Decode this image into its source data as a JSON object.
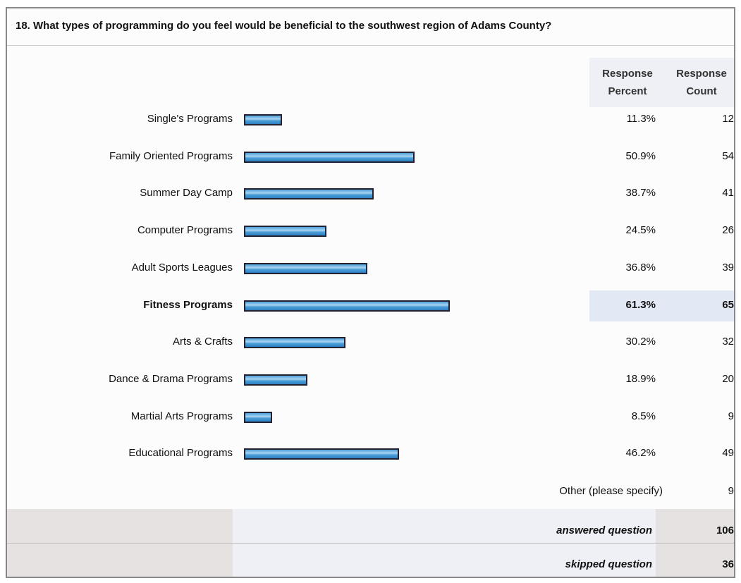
{
  "chart_data": {
    "type": "bar",
    "title": "18. What types of programming do you feel would be beneficial to the southwest region of Adams County?",
    "column_headers": [
      "Response Percent",
      "Response Count"
    ],
    "categories": [
      "Single's Programs",
      "Family Oriented Programs",
      "Summer Day Camp",
      "Computer Programs",
      "Adult Sports Leagues",
      "Fitness Programs",
      "Arts & Crafts",
      "Dance & Drama Programs",
      "Martial Arts Programs",
      "Educational Programs"
    ],
    "values": [
      11.3,
      50.9,
      38.7,
      24.5,
      36.8,
      61.3,
      30.2,
      18.9,
      8.5,
      46.2
    ],
    "value_labels": [
      "11.3%",
      "50.9%",
      "38.7%",
      "24.5%",
      "36.8%",
      "61.3%",
      "30.2%",
      "18.9%",
      "8.5%",
      "46.2%"
    ],
    "counts": [
      12,
      54,
      41,
      26,
      39,
      65,
      32,
      20,
      9,
      49
    ],
    "color": "#4a9fd8",
    "other": {
      "label": "Other (please specify)",
      "count": 9
    },
    "answered": {
      "label": "answered question",
      "count": 106
    },
    "skipped": {
      "label": "skipped question",
      "count": 36
    }
  }
}
